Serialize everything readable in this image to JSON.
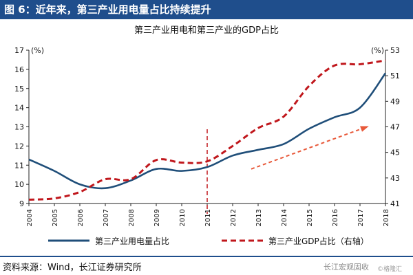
{
  "header": {
    "title": "图 6：近年来，第三产业用电量占比持续提升"
  },
  "footer": {
    "source": "资料来源：Wind，长江证券研究所",
    "watermark": "长江宏观固收",
    "watermark_sub": "©格隆汇"
  },
  "chart_data": {
    "type": "line",
    "title": "第三产业用电和第三产业的GDP占比",
    "x": [
      "2004",
      "2005",
      "2006",
      "2007",
      "2008",
      "2009",
      "2010",
      "2011",
      "2012",
      "2013",
      "2014",
      "2015",
      "2016",
      "2017",
      "2018"
    ],
    "left_axis": {
      "unit": "(%)",
      "ylim": [
        9,
        17
      ],
      "ticks": [
        9,
        10,
        11,
        12,
        13,
        14,
        15,
        16,
        17
      ]
    },
    "right_axis": {
      "unit": "(%)",
      "ylim": [
        41,
        53
      ],
      "ticks": [
        41,
        43,
        45,
        47,
        49,
        51,
        53
      ]
    },
    "series": [
      {
        "name": "第三产业用电量占比",
        "axis": "left",
        "color": "#1f4e79",
        "style": "solid",
        "values": [
          11.3,
          10.7,
          10.0,
          9.8,
          10.2,
          10.8,
          10.7,
          10.9,
          11.5,
          11.8,
          12.1,
          12.9,
          13.5,
          14.0,
          15.8
        ]
      },
      {
        "name": "第三产业GDP占比（右轴）",
        "axis": "right",
        "color": "#c0171c",
        "style": "dashed",
        "values": [
          41.3,
          41.4,
          41.9,
          42.9,
          42.9,
          44.4,
          44.2,
          44.3,
          45.5,
          46.9,
          47.8,
          50.2,
          51.8,
          51.9,
          52.2
        ]
      }
    ],
    "legend_position": "bottom",
    "annotations": [
      {
        "type": "vertical-dashed-line",
        "x": "2011"
      },
      {
        "type": "trend-arrow",
        "from": "2013",
        "to": "2017"
      }
    ]
  }
}
